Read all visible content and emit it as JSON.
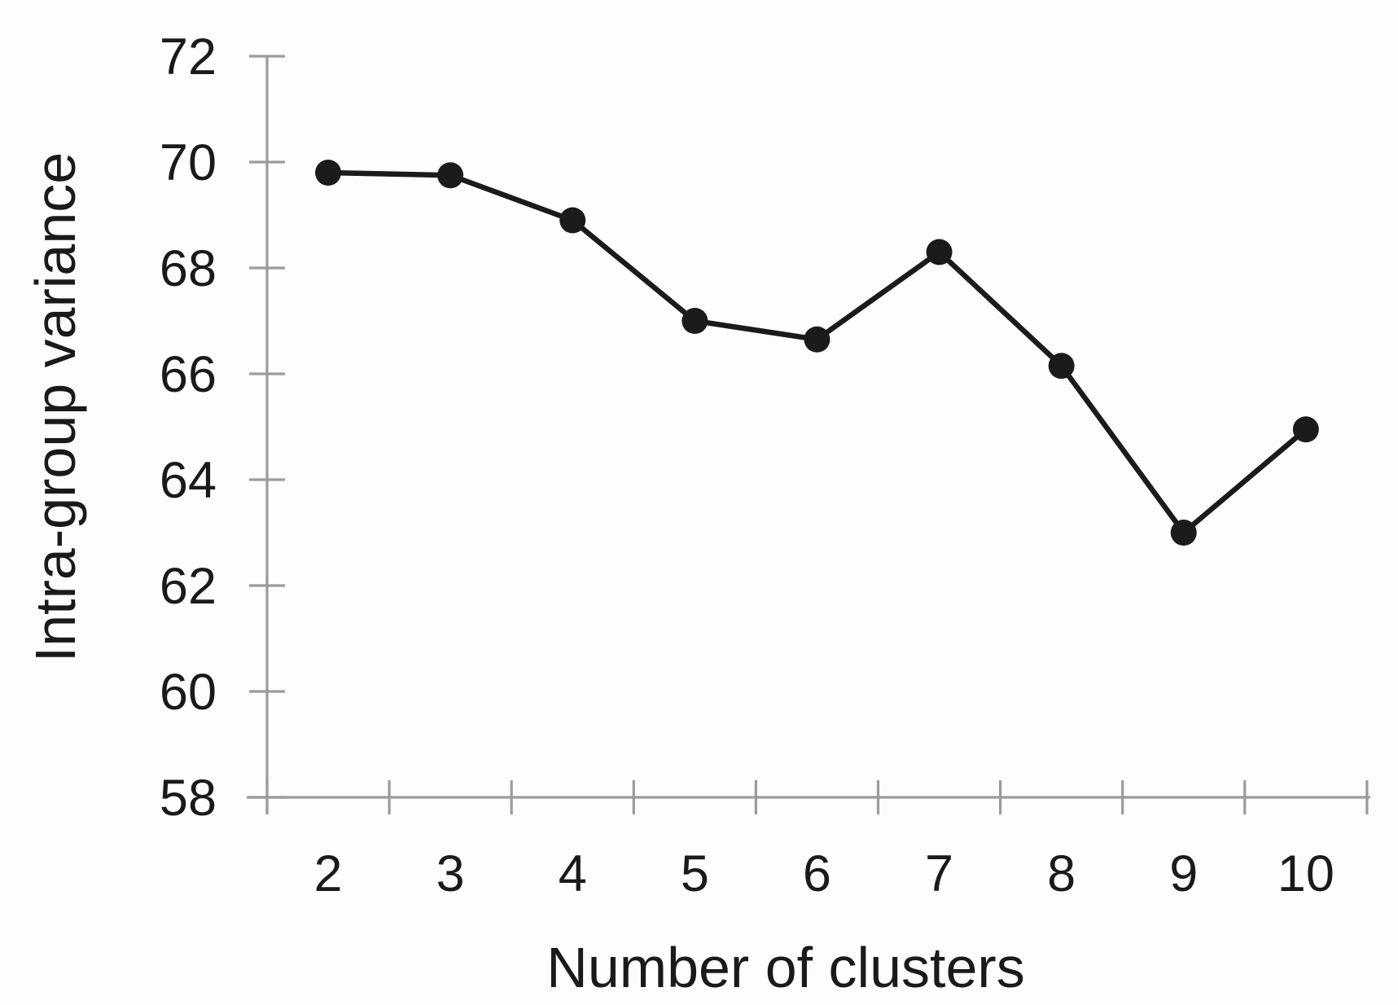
{
  "chart_data": {
    "type": "line",
    "title": "",
    "xlabel": "Number of clusters",
    "ylabel": "Intra-group variance",
    "x": [
      2,
      3,
      4,
      5,
      6,
      7,
      8,
      9,
      10
    ],
    "series": [
      {
        "name": "Intra-group variance",
        "values": [
          69.8,
          69.75,
          68.9,
          67.0,
          66.65,
          68.3,
          66.15,
          63.0,
          64.95
        ]
      }
    ],
    "y_ticks": [
      58,
      60,
      62,
      64,
      66,
      68,
      70,
      72
    ],
    "ylim": [
      58,
      72
    ],
    "xlim_categories": "ticks at category boundaries, labels centered between ticks",
    "grid": false,
    "legend": false,
    "marker": "filled-circle",
    "colors": {
      "line": "#1b1b1b",
      "marker": "#1b1b1b",
      "axis": "#9b9b9b",
      "text": "#1a1a1a",
      "background": "#fffdfb"
    }
  }
}
